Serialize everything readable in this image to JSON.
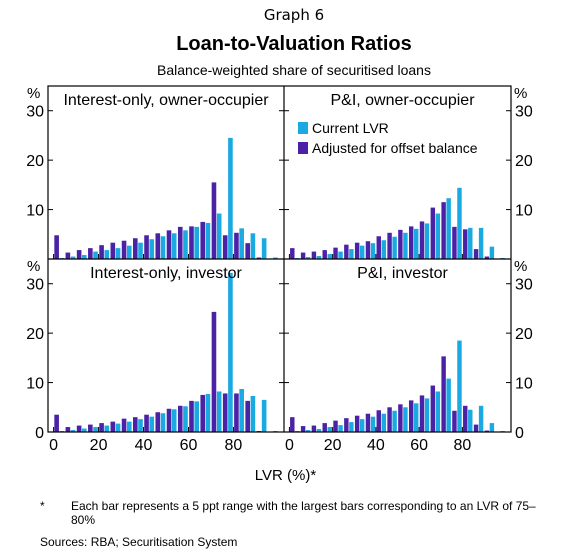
{
  "header": {
    "graph_number": "Graph 6",
    "title": "Loan-to-Valuation Ratios",
    "subtitle": "Balance-weighted share of securitised loans"
  },
  "colors": {
    "current": "#1ba9e1",
    "adjusted": "#4b22a6",
    "frame": "#000000"
  },
  "chart_data": {
    "type": "bar",
    "title": "Loan-to-Valuation Ratios",
    "subtitle": "Balance-weighted share of securitised loans",
    "xlabel": "LVR (%)*",
    "y_unit": "%",
    "x_range": [
      -2.5,
      102.5
    ],
    "x_ticks": [
      0,
      20,
      40,
      60,
      80
    ],
    "x_tick_labels": [
      "0",
      "20",
      "40",
      "60",
      "80"
    ],
    "ylim": [
      0,
      35
    ],
    "y_ticks": [
      0,
      10,
      20,
      30
    ],
    "y_tick_labels": [
      "0",
      "10",
      "20",
      "30"
    ],
    "bin_width": 5,
    "bins": [
      0,
      5,
      10,
      15,
      20,
      25,
      30,
      35,
      40,
      45,
      50,
      55,
      60,
      65,
      70,
      75,
      80,
      85,
      90,
      95
    ],
    "legend": {
      "placement": "top-right of first panel",
      "entries": [
        "Current LVR",
        "Adjusted for offset balance"
      ]
    },
    "series_names": [
      "Current LVR",
      "Adjusted for offset balance"
    ],
    "panels": [
      {
        "title": "Interest-only, owner-occupier",
        "current": [
          0.2,
          0.5,
          0.8,
          1.5,
          1.8,
          2.2,
          2.7,
          3.3,
          4.0,
          4.6,
          5.2,
          5.8,
          6.5,
          7.3,
          9.2,
          24.5,
          6.2,
          5.2,
          4.2,
          0.3
        ],
        "adjusted": [
          4.8,
          1.3,
          1.8,
          2.2,
          2.8,
          3.3,
          3.7,
          4.2,
          4.8,
          5.2,
          5.8,
          6.5,
          6.6,
          7.5,
          15.5,
          4.8,
          5.3,
          3.2,
          0.3,
          0.1
        ]
      },
      {
        "title": "P&I, owner-occupier",
        "current": [
          0.2,
          0.4,
          0.6,
          1.0,
          1.5,
          2.0,
          2.7,
          3.2,
          3.8,
          4.5,
          5.3,
          6.1,
          7.2,
          9.2,
          12.3,
          14.4,
          6.3,
          6.3,
          2.5,
          0.2
        ],
        "adjusted": [
          2.2,
          1.3,
          1.5,
          1.8,
          2.3,
          2.9,
          3.3,
          3.6,
          4.6,
          5.3,
          5.9,
          6.6,
          7.6,
          10.4,
          11.5,
          6.5,
          6.0,
          2.0,
          0.5,
          0.1
        ]
      },
      {
        "title": "Interest-only, investor",
        "current": [
          0.2,
          0.4,
          0.7,
          1.0,
          1.3,
          1.7,
          2.1,
          2.6,
          3.1,
          3.8,
          4.6,
          5.2,
          6.2,
          7.7,
          8.2,
          32.2,
          8.7,
          7.3,
          6.5,
          0.2
        ],
        "adjusted": [
          3.5,
          1.0,
          1.3,
          1.5,
          1.8,
          2.1,
          2.7,
          3.0,
          3.5,
          4.0,
          4.7,
          5.3,
          6.3,
          7.5,
          24.3,
          7.8,
          7.8,
          6.3,
          0.2,
          0.1
        ]
      },
      {
        "title": "P&I, investor",
        "current": [
          0.2,
          0.4,
          0.6,
          1.0,
          1.4,
          2.0,
          2.6,
          3.1,
          3.7,
          4.3,
          5.0,
          5.8,
          6.8,
          8.2,
          10.8,
          18.5,
          4.5,
          5.3,
          1.8,
          0.2
        ],
        "adjusted": [
          3.0,
          1.2,
          1.3,
          1.8,
          2.3,
          2.8,
          3.3,
          3.7,
          4.4,
          5.0,
          5.6,
          6.4,
          7.4,
          9.4,
          15.3,
          4.3,
          5.3,
          1.5,
          0.3,
          0.1
        ]
      }
    ]
  },
  "notes": {
    "footnote_marker": "*",
    "footnote": "Each bar represents a 5 ppt range with the largest bars corresponding to an LVR of 75–80%",
    "sources": "Sources:   RBA; Securitisation System"
  }
}
